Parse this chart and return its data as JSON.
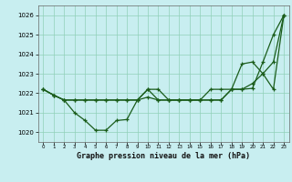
{
  "title": "Graphe pression niveau de la mer (hPa)",
  "bg_color": "#c8eef0",
  "grid_color": "#90d0b8",
  "line_color": "#1a5c1a",
  "xlim": [
    -0.5,
    23.5
  ],
  "ylim": [
    1019.5,
    1026.5
  ],
  "yticks": [
    1020,
    1021,
    1022,
    1023,
    1024,
    1025,
    1026
  ],
  "xticks": [
    0,
    1,
    2,
    3,
    4,
    5,
    6,
    7,
    8,
    9,
    10,
    11,
    12,
    13,
    14,
    15,
    16,
    17,
    18,
    19,
    20,
    21,
    22,
    23
  ],
  "series1": [
    1022.2,
    1021.9,
    1021.65,
    1021.0,
    1020.6,
    1020.1,
    1020.1,
    1020.6,
    1020.65,
    1021.65,
    1021.8,
    1021.65,
    1021.65,
    1021.65,
    1021.65,
    1021.65,
    1021.65,
    1021.65,
    1022.2,
    1022.2,
    1022.25,
    1023.6,
    1025.0,
    1026.0
  ],
  "series2": [
    1022.2,
    1021.9,
    1021.65,
    1021.65,
    1021.65,
    1021.65,
    1021.65,
    1021.65,
    1021.65,
    1021.65,
    1022.2,
    1021.65,
    1021.65,
    1021.65,
    1021.65,
    1021.65,
    1021.65,
    1021.65,
    1022.2,
    1022.2,
    1022.5,
    1023.0,
    1023.6,
    1026.0
  ],
  "series3": [
    1022.2,
    1021.9,
    1021.65,
    1021.65,
    1021.65,
    1021.65,
    1021.65,
    1021.65,
    1021.65,
    1021.65,
    1022.2,
    1022.2,
    1021.65,
    1021.65,
    1021.65,
    1021.65,
    1022.2,
    1022.2,
    1022.2,
    1023.5,
    1023.6,
    1023.0,
    1022.2,
    1026.0
  ]
}
